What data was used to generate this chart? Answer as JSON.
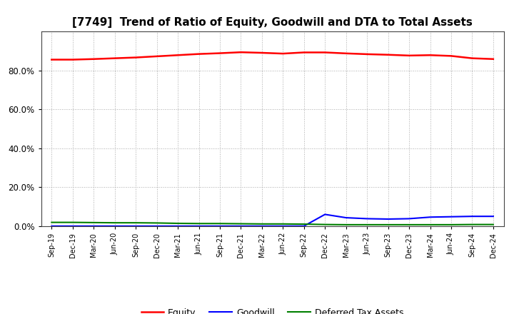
{
  "title": "[7749]  Trend of Ratio of Equity, Goodwill and DTA to Total Assets",
  "x_labels": [
    "Sep-19",
    "Dec-19",
    "Mar-20",
    "Jun-20",
    "Sep-20",
    "Dec-20",
    "Mar-21",
    "Jun-21",
    "Sep-21",
    "Dec-21",
    "Mar-22",
    "Jun-22",
    "Sep-22",
    "Dec-22",
    "Mar-23",
    "Jun-23",
    "Sep-23",
    "Dec-23",
    "Mar-24",
    "Jun-24",
    "Sep-24",
    "Dec-24"
  ],
  "equity": [
    0.855,
    0.855,
    0.858,
    0.862,
    0.866,
    0.872,
    0.878,
    0.884,
    0.888,
    0.893,
    0.89,
    0.886,
    0.892,
    0.892,
    0.887,
    0.883,
    0.88,
    0.876,
    0.878,
    0.874,
    0.862,
    0.858
  ],
  "goodwill": [
    0.0,
    0.0,
    0.0,
    0.0,
    0.0,
    0.0,
    0.0,
    0.0,
    0.0,
    0.0,
    0.0,
    0.0,
    0.0,
    0.06,
    0.043,
    0.038,
    0.036,
    0.038,
    0.046,
    0.048,
    0.05,
    0.05
  ],
  "dta": [
    0.019,
    0.019,
    0.018,
    0.017,
    0.017,
    0.016,
    0.014,
    0.013,
    0.013,
    0.012,
    0.011,
    0.011,
    0.01,
    0.008,
    0.007,
    0.007,
    0.007,
    0.007,
    0.007,
    0.007,
    0.008,
    0.008
  ],
  "equity_color": "#ff0000",
  "goodwill_color": "#0000ff",
  "dta_color": "#008000",
  "background_color": "#ffffff",
  "grid_color": "#aaaaaa",
  "ylim": [
    0.0,
    1.0
  ],
  "yticks": [
    0.0,
    0.2,
    0.4,
    0.6,
    0.8
  ],
  "legend_labels": [
    "Equity",
    "Goodwill",
    "Deferred Tax Assets"
  ],
  "title_fontsize": 11
}
